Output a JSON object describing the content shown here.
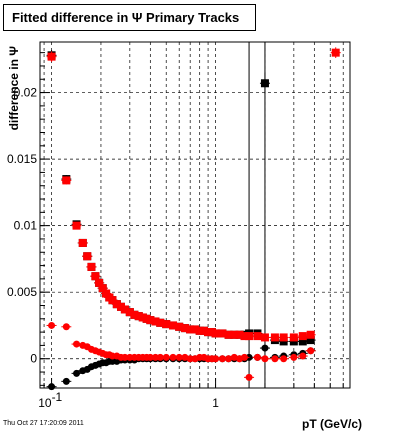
{
  "timestamp": "Thu Oct 27 17:20:09 2011",
  "chart_data": {
    "type": "scatter",
    "title": "Fitted difference in Ψ  Primary Tracks",
    "xlabel": "pT (GeV/c)",
    "ylabel": "difference in Ψ",
    "xscale": "log",
    "xlim": [
      0.085,
      6.6
    ],
    "ylim": [
      -0.0022,
      0.0238
    ],
    "x_ticks": [
      {
        "value": 0.1,
        "label": "10",
        "exponent": "-1"
      },
      {
        "value": 1,
        "label": "1",
        "exponent": ""
      }
    ],
    "y_ticks": [
      {
        "value": 0,
        "label": "0"
      },
      {
        "value": 0.005,
        "label": "0.005"
      },
      {
        "value": 0.01,
        "label": "0.01"
      },
      {
        "value": 0.015,
        "label": "0.015"
      },
      {
        "value": 0.02,
        "label": "0.02"
      }
    ],
    "grid": true,
    "vertical_lines": [
      1.6,
      2.0
    ],
    "series": [
      {
        "color": "#ff0000",
        "marker": "square",
        "x": [
          0.1,
          0.123,
          0.142,
          0.155,
          0.165,
          0.175,
          0.185,
          0.195,
          0.205,
          0.215,
          0.225,
          0.235,
          0.25,
          0.265,
          0.28,
          0.3,
          0.32,
          0.34,
          0.36,
          0.38,
          0.4,
          0.43,
          0.46,
          0.5,
          0.55,
          0.6,
          0.65,
          0.7,
          0.75,
          0.8,
          0.85,
          0.9,
          0.95,
          1.0,
          1.1,
          1.2,
          1.3,
          1.4,
          1.5,
          1.6,
          1.8,
          2.0,
          2.3,
          2.6,
          3.0,
          3.4,
          3.8,
          5.4
        ],
        "y": [
          0.0227,
          0.0134,
          0.01,
          0.0087,
          0.0077,
          0.0069,
          0.0062,
          0.0057,
          0.0053,
          0.0049,
          0.0046,
          0.0044,
          0.0041,
          0.0039,
          0.0037,
          0.0035,
          0.0033,
          0.0032,
          0.0031,
          0.003,
          0.0029,
          0.0028,
          0.0027,
          0.0026,
          0.0025,
          0.0024,
          0.0023,
          0.0022,
          0.0022,
          0.0021,
          0.0021,
          0.002,
          0.002,
          0.0019,
          0.0019,
          0.0018,
          0.0018,
          0.0018,
          0.0017,
          0.0017,
          0.0017,
          0.0016,
          0.0016,
          0.0016,
          0.0016,
          0.0017,
          0.0018,
          0.023
        ],
        "err": [
          0.0004,
          0.0003,
          0.0002,
          0.0002,
          0.0002,
          0.0002,
          0.0002,
          0.0001,
          0.0001,
          0.0001,
          0.0001,
          0.0001,
          0.0001,
          0.0001,
          0.0001,
          0.0001,
          0.0001,
          0.0001,
          0.0001,
          0.0001,
          0.0001,
          0.0001,
          0.0001,
          0.0001,
          0.0001,
          0.0001,
          0.0001,
          0.0001,
          0.0001,
          0.0001,
          0.0001,
          0.0001,
          0.0001,
          0.0001,
          0.0001,
          0.0001,
          0.0001,
          0.0001,
          0.0001,
          0.0001,
          0.0001,
          0.0001,
          0.0001,
          0.0001,
          0.0002,
          0.0002,
          0.0002,
          0.0004
        ]
      },
      {
        "color": "#000000",
        "marker": "square",
        "x": [
          0.1,
          0.123,
          0.142,
          0.155,
          0.165,
          0.175,
          0.185,
          0.195,
          0.205,
          0.215,
          0.225,
          0.235,
          0.25,
          0.265,
          0.28,
          0.3,
          0.32,
          0.34,
          0.36,
          0.38,
          0.4,
          0.43,
          0.46,
          0.5,
          0.55,
          0.6,
          0.65,
          0.7,
          0.75,
          0.8,
          0.85,
          0.9,
          0.95,
          1.0,
          1.1,
          1.2,
          1.3,
          1.4,
          1.5,
          1.6,
          1.8,
          2.0,
          2.3,
          2.6,
          3.0,
          3.4,
          3.8
        ],
        "y": [
          0.0228,
          0.0135,
          0.0101,
          0.0087,
          0.0077,
          0.0069,
          0.0062,
          0.0057,
          0.0053,
          0.0049,
          0.0046,
          0.0044,
          0.0041,
          0.0039,
          0.0037,
          0.0035,
          0.0033,
          0.0032,
          0.0031,
          0.003,
          0.0029,
          0.0028,
          0.0027,
          0.0026,
          0.0025,
          0.0024,
          0.0023,
          0.0022,
          0.0022,
          0.0021,
          0.0021,
          0.002,
          0.002,
          0.0019,
          0.0019,
          0.0018,
          0.0018,
          0.0018,
          0.0018,
          0.0019,
          0.0019,
          0.0207,
          0.0014,
          0.0013,
          0.0013,
          0.0013,
          0.0014
        ],
        "err": [
          0.0004,
          0.0003,
          0.0002,
          0.0002,
          0.0002,
          0.0002,
          0.0002,
          0.0001,
          0.0001,
          0.0001,
          0.0001,
          0.0001,
          0.0001,
          0.0001,
          0.0001,
          0.0001,
          0.0001,
          0.0001,
          0.0001,
          0.0001,
          0.0001,
          0.0001,
          0.0001,
          0.0001,
          0.0001,
          0.0001,
          0.0001,
          0.0001,
          0.0001,
          0.0001,
          0.0001,
          0.0001,
          0.0001,
          0.0001,
          0.0001,
          0.0001,
          0.0001,
          0.0001,
          0.0001,
          0.0001,
          0.0001,
          0.0008,
          0.0001,
          0.0001,
          0.0001,
          0.0001,
          0.0002
        ]
      },
      {
        "color": "#ff0000",
        "marker": "circle",
        "x": [
          0.1,
          0.123,
          0.142,
          0.155,
          0.165,
          0.175,
          0.185,
          0.195,
          0.205,
          0.215,
          0.225,
          0.235,
          0.25,
          0.265,
          0.28,
          0.3,
          0.32,
          0.34,
          0.36,
          0.38,
          0.4,
          0.43,
          0.46,
          0.5,
          0.55,
          0.6,
          0.65,
          0.7,
          0.75,
          0.8,
          0.85,
          0.9,
          0.95,
          1.0,
          1.1,
          1.2,
          1.3,
          1.4,
          1.5,
          1.6,
          1.8,
          2.0,
          2.3,
          2.6,
          3.0,
          3.4,
          3.8
        ],
        "y": [
          0.0025,
          0.0024,
          0.0011,
          0.001,
          0.0009,
          0.0007,
          0.0006,
          0.0005,
          0.0004,
          0.0003,
          0.0003,
          0.0002,
          0.0002,
          0.0001,
          0.0001,
          0.0001,
          0.0001,
          0.0001,
          0.0001,
          0.0001,
          0.0001,
          0.0001,
          0.0001,
          0.0001,
          0.0001,
          0.0001,
          0.0001,
          0.0,
          0.0,
          0.0001,
          0.0001,
          0.0,
          0.0,
          0.0,
          0.0,
          0.0,
          0.0001,
          0.0,
          0.0001,
          -0.0014,
          0.0001,
          0.0,
          0.0,
          0.0,
          0.0001,
          0.0002,
          0.0006
        ],
        "err": [
          0.0002,
          0.0002,
          0.0001,
          0.0001,
          0.0001,
          0.0001,
          0.0001,
          0.0001,
          0.0001,
          0.0001,
          0.0001,
          0.0001,
          0.0001,
          0.0001,
          0.0001,
          0.0001,
          0.0001,
          0.0001,
          0.0001,
          0.0001,
          0.0001,
          0.0001,
          0.0001,
          0.0001,
          0.0001,
          0.0001,
          0.0001,
          0.0001,
          0.0001,
          0.0001,
          0.0001,
          0.0001,
          0.0001,
          0.0001,
          0.0001,
          0.0001,
          0.0001,
          0.0001,
          0.0001,
          0.0002,
          0.0001,
          0.0001,
          0.0001,
          0.0001,
          0.0001,
          0.0001,
          0.0002
        ]
      },
      {
        "color": "#000000",
        "marker": "circle",
        "x": [
          0.1,
          0.123,
          0.142,
          0.155,
          0.165,
          0.175,
          0.185,
          0.195,
          0.205,
          0.215,
          0.225,
          0.235,
          0.25,
          0.265,
          0.28,
          0.3,
          0.32,
          0.34,
          0.36,
          0.38,
          0.4,
          0.43,
          0.46,
          0.5,
          0.55,
          0.6,
          0.65,
          0.7,
          0.75,
          0.8,
          0.85,
          0.9,
          0.95,
          1.0,
          1.1,
          1.2,
          1.3,
          1.4,
          1.5,
          1.6,
          1.8,
          2.0,
          2.3,
          2.6,
          3.0,
          3.4,
          3.8
        ],
        "y": [
          -0.0021,
          -0.0017,
          -0.0011,
          -0.0009,
          -0.0008,
          -0.0006,
          -0.0005,
          -0.0004,
          -0.0003,
          -0.0003,
          -0.0002,
          -0.0002,
          -0.0002,
          -0.0001,
          -0.0001,
          -0.0001,
          -0.0001,
          0.0,
          0.0,
          0.0,
          0.0,
          0.0,
          0.0,
          0.0,
          0.0,
          0.0,
          0.0,
          0.0,
          0.0,
          0.0,
          0.0,
          0.0,
          0.0,
          0.0,
          0.0,
          0.0,
          0.0,
          0.0,
          0.0,
          0.0001,
          0.0001,
          0.0008,
          0.0001,
          0.0002,
          0.0003,
          0.0004,
          0.0006
        ],
        "err": [
          0.0002,
          0.0002,
          0.0001,
          0.0001,
          0.0001,
          0.0001,
          0.0001,
          0.0001,
          0.0001,
          0.0001,
          0.0001,
          0.0001,
          0.0001,
          0.0001,
          0.0001,
          0.0001,
          0.0001,
          0.0001,
          0.0001,
          0.0001,
          0.0001,
          0.0001,
          0.0001,
          0.0001,
          0.0001,
          0.0001,
          0.0001,
          0.0001,
          0.0001,
          0.0001,
          0.0001,
          0.0001,
          0.0001,
          0.0001,
          0.0001,
          0.0001,
          0.0001,
          0.0001,
          0.0001,
          0.0001,
          0.0001,
          0.0003,
          0.0001,
          0.0001,
          0.0001,
          0.0001,
          0.0002
        ]
      }
    ]
  }
}
